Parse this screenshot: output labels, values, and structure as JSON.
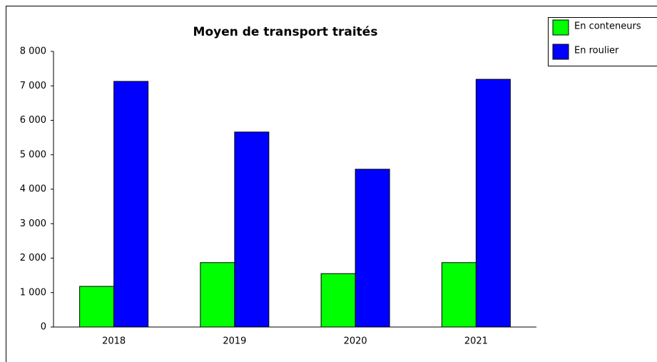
{
  "chart_data": {
    "type": "bar",
    "title": "Moyen de transport traités",
    "categories": [
      "2018",
      "2019",
      "2020",
      "2021"
    ],
    "series": [
      {
        "name": "En conteneurs",
        "color": "#00ff00",
        "values": [
          1180,
          1870,
          1550,
          1870
        ]
      },
      {
        "name": "En roulier",
        "color": "#0000ff",
        "values": [
          7130,
          5660,
          4580,
          7190
        ]
      }
    ],
    "ylim": [
      0,
      8000
    ],
    "yticks": [
      0,
      {
        "value": 1000,
        "label": "1 000"
      },
      {
        "value": 2000,
        "label": "2 000"
      },
      {
        "value": 3000,
        "label": "3 000"
      },
      {
        "value": 4000,
        "label": "4 000"
      },
      {
        "value": 5000,
        "label": "5 000"
      },
      {
        "value": 6000,
        "label": "6 000"
      },
      {
        "value": 7000,
        "label": "7 000"
      },
      {
        "value": 8000,
        "label": "8 000"
      }
    ],
    "legend": "top-right",
    "grid": false
  }
}
